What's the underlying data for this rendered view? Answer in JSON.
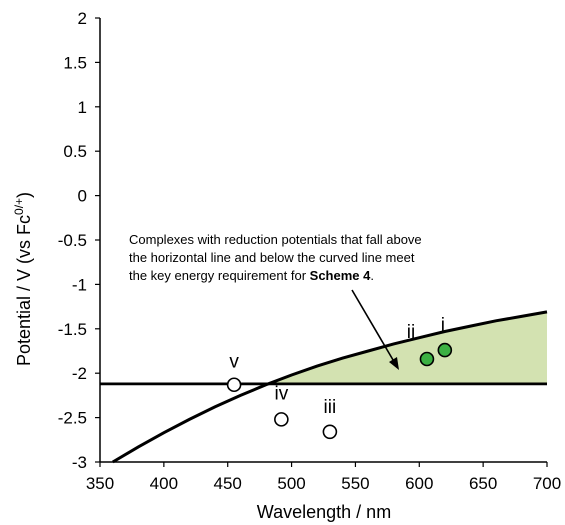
{
  "chart_data": {
    "type": "line",
    "xlabel": "Wavelength / nm",
    "ylabel": {
      "main": "Potential / V (vs Fc",
      "sup": "0/+",
      "end": ")"
    },
    "xlim": [
      350,
      700
    ],
    "ylim": [
      -3,
      2
    ],
    "x_ticks": [
      "350",
      "400",
      "450",
      "500",
      "550",
      "600",
      "650",
      "700"
    ],
    "y_ticks": [
      "2",
      "1.5",
      "1",
      "0.5",
      "0",
      "-0.5",
      "-1",
      "-1.5",
      "-2",
      "-2.5",
      "-3"
    ],
    "grid": false,
    "colors": {
      "region_fill": "#d3e2b1",
      "filled_point": "#3cb043",
      "open_point": "#ffffff",
      "line": "#000000"
    },
    "horizontal_line": {
      "y": -2.12
    },
    "curve": {
      "x": [
        360,
        380,
        400,
        420,
        440,
        460,
        480,
        500,
        520,
        540,
        560,
        580,
        600,
        620,
        640,
        660,
        680,
        700
      ],
      "y": [
        -3.0,
        -2.83,
        -2.67,
        -2.52,
        -2.38,
        -2.25,
        -2.13,
        -2.02,
        -1.92,
        -1.83,
        -1.75,
        -1.67,
        -1.6,
        -1.53,
        -1.47,
        -1.41,
        -1.36,
        -1.31
      ]
    },
    "points": [
      {
        "label": "i",
        "x": 620,
        "y": -1.74,
        "filled": true
      },
      {
        "label": "ii",
        "x": 606,
        "y": -1.84,
        "filled": true
      },
      {
        "label": "iii",
        "x": 530,
        "y": -2.66,
        "filled": false
      },
      {
        "label": "iv",
        "x": 492,
        "y": -2.52,
        "filled": false
      },
      {
        "label": "v",
        "x": 455,
        "y": -2.13,
        "filled": false
      }
    ],
    "annotation": {
      "lines": [
        "Complexes with reduction potentials  that fall above",
        "the horizontal line and below the curved line meet",
        "the key energy requirement for "
      ],
      "bold": "Scheme 4",
      "tail": "."
    }
  }
}
